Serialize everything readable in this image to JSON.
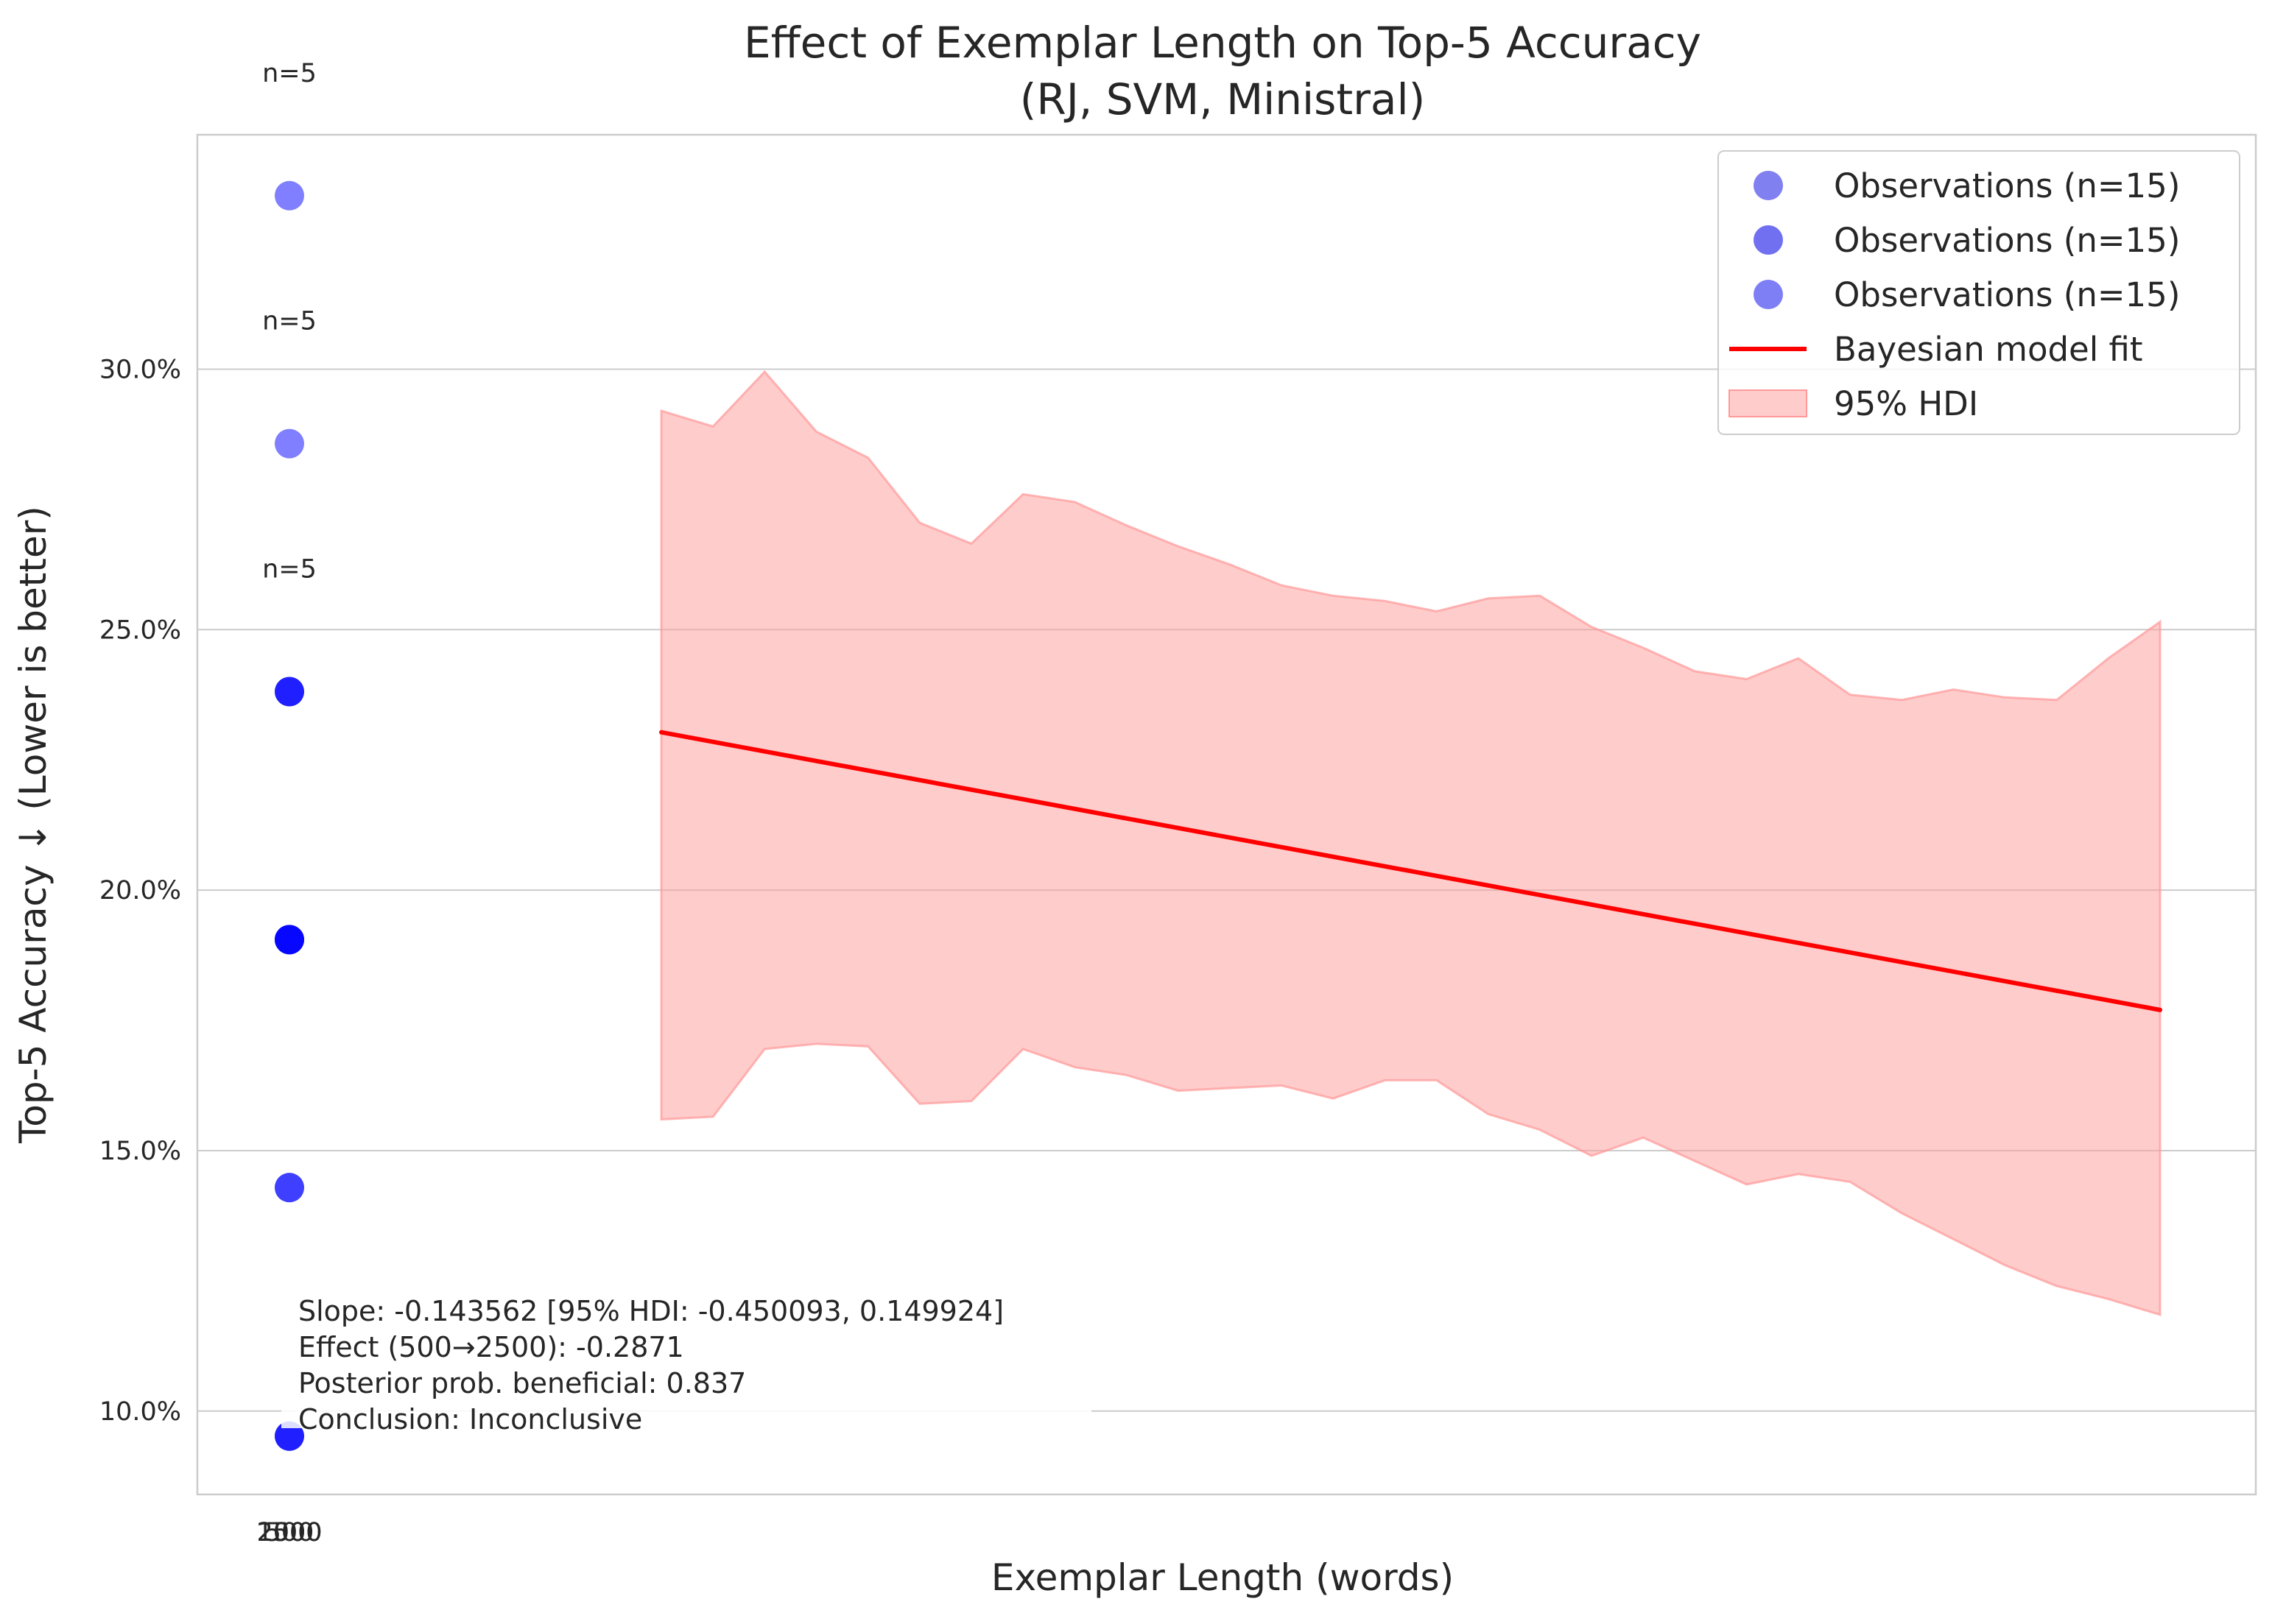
{
  "chart_data": {
    "type": "scatter",
    "title": "Effect of Exemplar Length on Top-5 Accuracy",
    "subtitle": "(RJ, SVM, Ministral)",
    "xlabel": "Exemplar Length (words)",
    "ylabel": "Top-5 Accuracy ↓ (Lower is better)",
    "ylim": [
      0.084,
      0.345
    ],
    "y_ticks": [
      0.1,
      0.15,
      0.2,
      0.25,
      0.3
    ],
    "y_tick_labels": [
      "10.0%",
      "15.0%",
      "20.0%",
      "25.0%",
      "30.0%"
    ],
    "x_tick_labels": [
      "500",
      "1000",
      "2500"
    ],
    "grid": true,
    "legend_position": "upper right",
    "series": [
      {
        "name": "Observations (n=15)",
        "color": "#8080f0",
        "alpha": 0.5,
        "x": [
          500,
          500,
          500,
          500,
          500
        ],
        "y": [
          0.3333,
          0.2857,
          0.2381,
          0.1905,
          0.0952
        ]
      },
      {
        "name": "Observations (n=15)",
        "color": "#7070f0",
        "alpha": 0.5,
        "x": [
          1000,
          1000,
          1000,
          1000,
          1000
        ],
        "y": [
          0.2381,
          0.1905,
          0.1905,
          0.1429,
          0.0952
        ]
      },
      {
        "name": "Observations (n=15)",
        "color": "#7f7ff5",
        "alpha": 0.5,
        "x": [
          2500,
          2500,
          2500,
          2500,
          2500
        ],
        "y": [
          0.2381,
          0.1905,
          0.1905,
          0.1429,
          0.0952
        ]
      }
    ],
    "group_counts": [
      {
        "label": "n=5",
        "y": 0.3333
      },
      {
        "label": "n=5",
        "y": 0.2857
      },
      {
        "label": "n=5",
        "y": 0.2381
      }
    ],
    "model_fit": {
      "name": "Bayesian model fit",
      "color": "#ff0000",
      "y": [
        0.2303,
        0.177
      ]
    },
    "hdi": {
      "name": "95% HDI",
      "color": "#ff9999",
      "upper": [
        0.292,
        0.289,
        0.2995,
        0.288,
        0.283,
        0.2705,
        0.2665,
        0.276,
        0.2745,
        0.27,
        0.266,
        0.2625,
        0.2585,
        0.2565,
        0.2555,
        0.2535,
        0.256,
        0.2565,
        0.2505,
        0.2465,
        0.242,
        0.2405,
        0.2445,
        0.2375,
        0.2365,
        0.2385,
        0.237,
        0.2365,
        0.2445,
        0.2515
      ],
      "lower": [
        0.156,
        0.1565,
        0.1695,
        0.1705,
        0.17,
        0.159,
        0.1595,
        0.1695,
        0.166,
        0.1645,
        0.1615,
        0.162,
        0.1625,
        0.16,
        0.1635,
        0.1635,
        0.157,
        0.154,
        0.149,
        0.1525,
        0.148,
        0.1435,
        0.1455,
        0.144,
        0.138,
        0.133,
        0.128,
        0.124,
        0.1215,
        0.1185
      ]
    },
    "annotation": [
      "Slope: -0.143562 [95% HDI: -0.450093, 0.149924]",
      "Effect (500→2500): -0.2871",
      "Posterior prob. beneficial: 0.837",
      "Conclusion: Inconclusive"
    ]
  }
}
